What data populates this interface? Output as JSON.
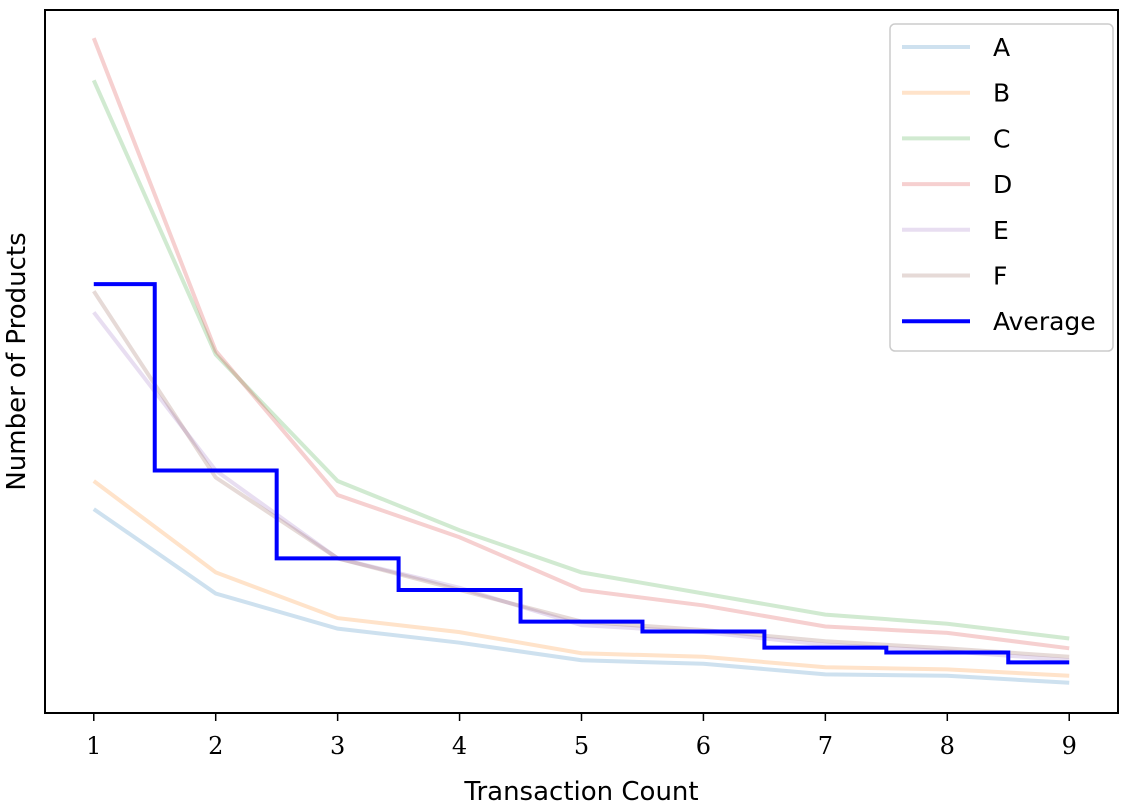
{
  "chart_data": {
    "type": "line",
    "title": "",
    "xlabel": "Transaction Count",
    "ylabel": "Number of Products",
    "x": [
      1,
      2,
      3,
      4,
      5,
      6,
      7,
      8,
      9
    ],
    "xlim": [
      0.6,
      9.4
    ],
    "ylim": [
      0,
      100
    ],
    "y_ticks_shown": false,
    "grid": false,
    "legend_position": "top-right",
    "series": [
      {
        "name": "A",
        "color": "#1f77b4",
        "alpha": 0.22,
        "style": "line",
        "values": [
          29,
          17,
          12,
          10,
          7.5,
          7,
          5.5,
          5.3,
          4.3
        ]
      },
      {
        "name": "B",
        "color": "#ff7f0e",
        "alpha": 0.22,
        "style": "line",
        "values": [
          33,
          20,
          13.5,
          11.5,
          8.5,
          8,
          6.5,
          6.2,
          5.3
        ]
      },
      {
        "name": "C",
        "color": "#2ca02c",
        "alpha": 0.22,
        "style": "line",
        "values": [
          90,
          51,
          33,
          26,
          20,
          17,
          14,
          12.7,
          10.6
        ]
      },
      {
        "name": "D",
        "color": "#d62728",
        "alpha": 0.22,
        "style": "line",
        "values": [
          96,
          51.5,
          31,
          25,
          17.5,
          15.3,
          12.3,
          11.4,
          9.2
        ]
      },
      {
        "name": "E",
        "color": "#9467bd",
        "alpha": 0.22,
        "style": "line",
        "values": [
          57,
          34.5,
          22,
          17.8,
          12.5,
          11.5,
          9.7,
          8.8,
          7.5
        ]
      },
      {
        "name": "F",
        "color": "#8c564b",
        "alpha": 0.22,
        "style": "line",
        "values": [
          60,
          33.5,
          22,
          17.5,
          13,
          11.8,
          10.2,
          9.2,
          8
        ]
      },
      {
        "name": "Average",
        "color": "#0000ff",
        "alpha": 1,
        "style": "step-mid",
        "values": [
          61,
          34.5,
          22,
          17.5,
          13,
          11.6,
          9.3,
          8.6,
          7.2
        ]
      }
    ]
  }
}
